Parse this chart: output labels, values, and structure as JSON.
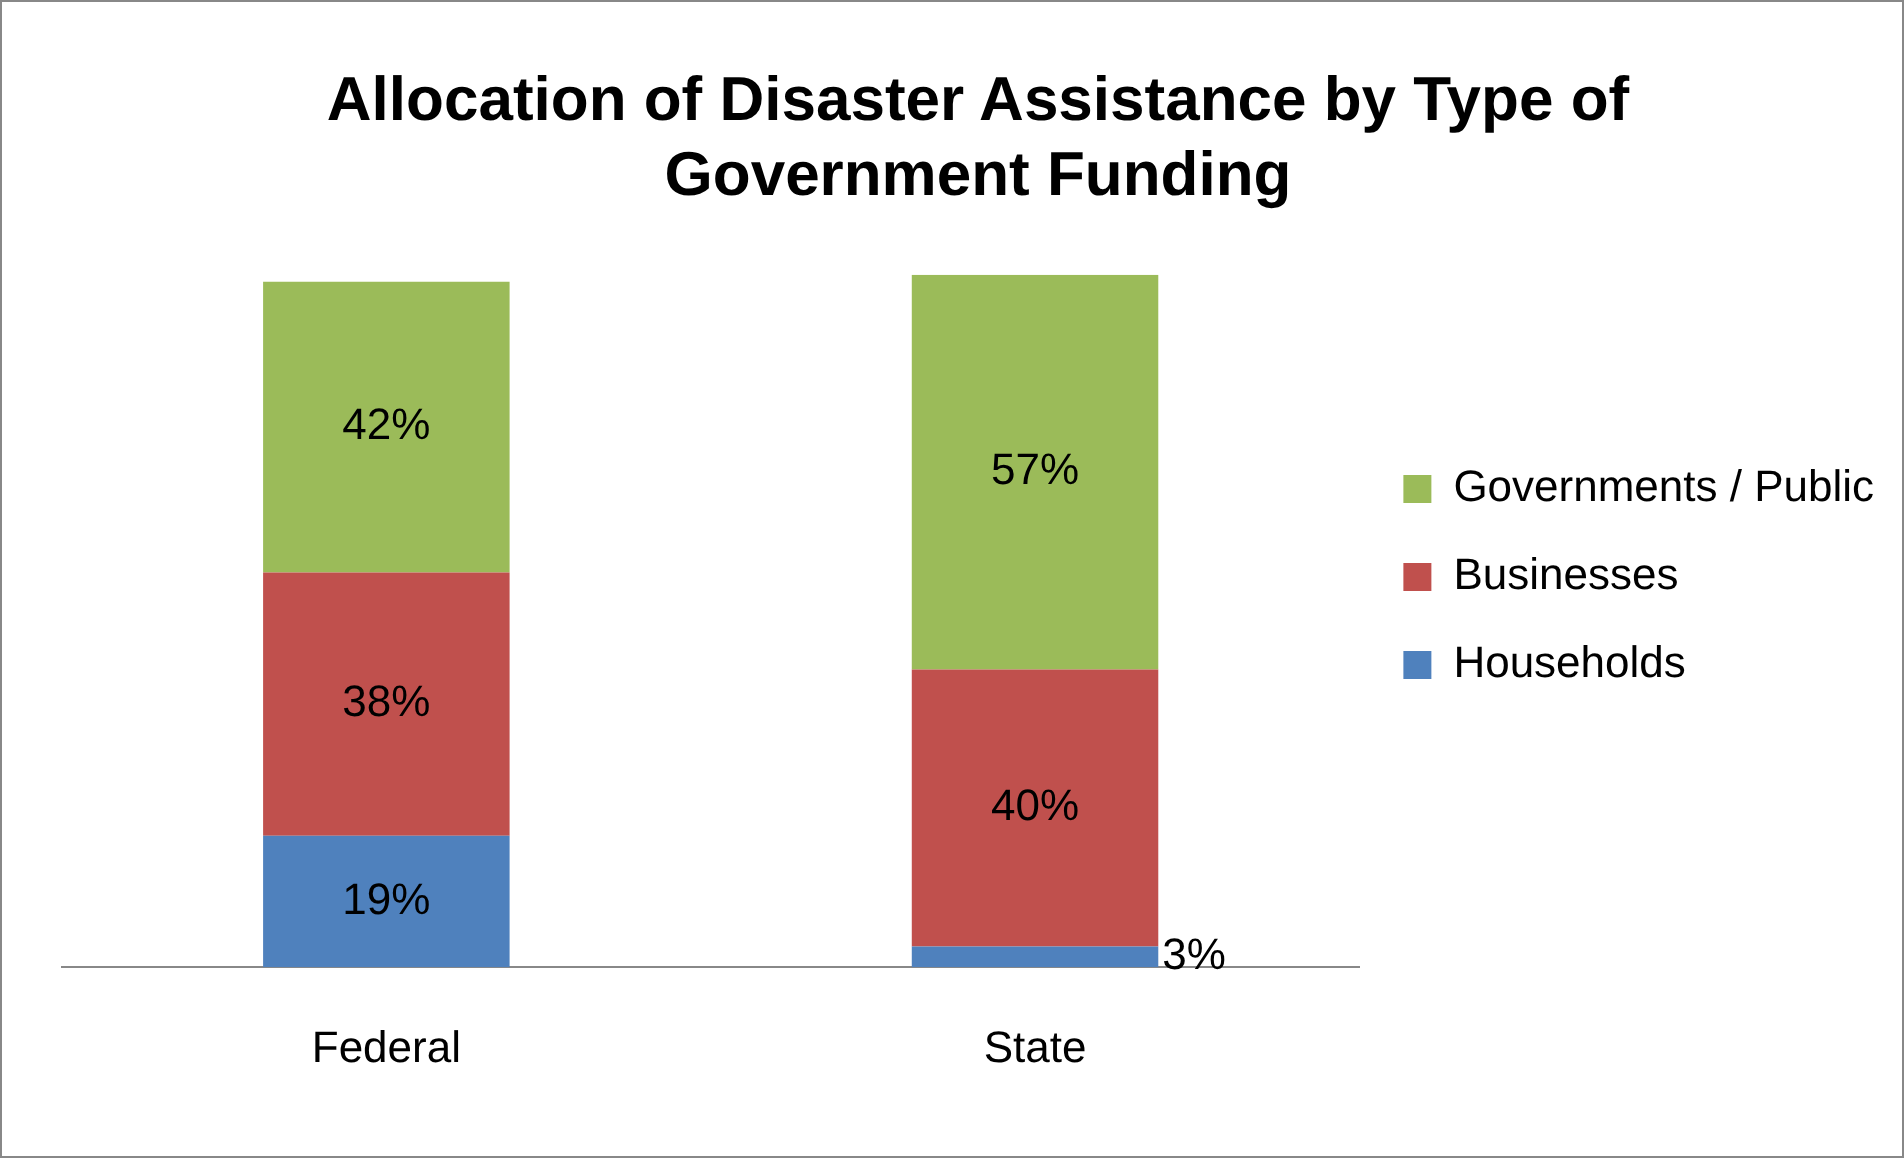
{
  "chart_data": {
    "type": "bar",
    "title": "Allocation of Disaster Assistance by Type of Government Funding",
    "categories": [
      "Federal",
      "State"
    ],
    "stacked": true,
    "legend": "right",
    "grid": false,
    "series": [
      {
        "name": "Households",
        "color": "#4f81bd",
        "values": [
          19,
          3
        ],
        "value_labels": [
          "19%",
          "3%"
        ]
      },
      {
        "name": "Businesses",
        "color": "#c0504d",
        "values": [
          38,
          40
        ],
        "value_labels": [
          "38%",
          "40%"
        ]
      },
      {
        "name": "Governments / Public",
        "color": "#9bbb59",
        "values": [
          42,
          57
        ],
        "value_labels": [
          "42%",
          "57%"
        ]
      }
    ]
  }
}
